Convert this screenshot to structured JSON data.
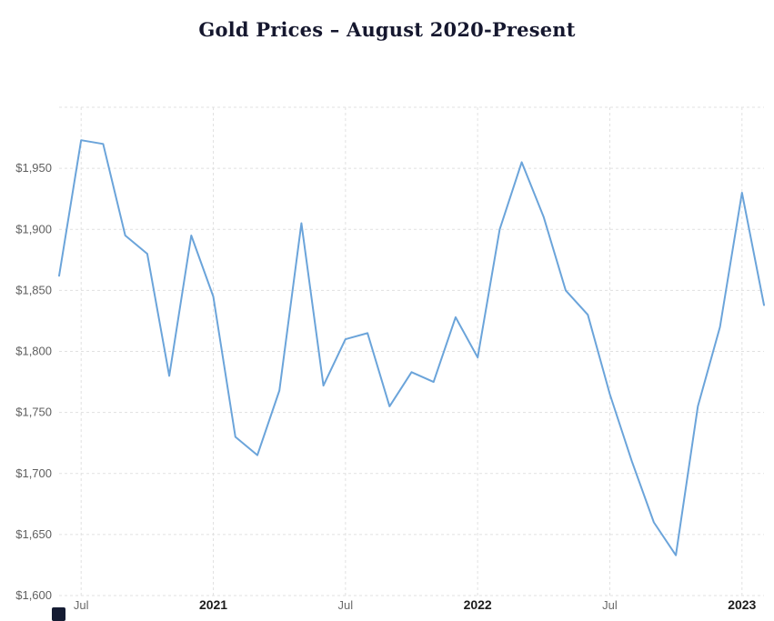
{
  "page": {
    "title": "Gold Prices – August 2020-Present"
  },
  "chart_data": {
    "type": "line",
    "title": "Gold Prices – August 2020-Present",
    "x": [
      "Jun 2020",
      "Jul 2020",
      "Aug 2020",
      "Sep 2020",
      "Oct 2020",
      "Nov 2020",
      "Dec 2020",
      "Jan 2021",
      "Feb 2021",
      "Mar 2021",
      "Apr 2021",
      "May 2021",
      "Jun 2021",
      "Jul 2021",
      "Aug 2021",
      "Sep 2021",
      "Oct 2021",
      "Nov 2021",
      "Dec 2021",
      "Jan 2022",
      "Feb 2022",
      "Mar 2022",
      "Apr 2022",
      "May 2022",
      "Jun 2022",
      "Jul 2022",
      "Aug 2022",
      "Sep 2022",
      "Oct 2022",
      "Nov 2022",
      "Dec 2022",
      "Jan 2023",
      "Feb 2023"
    ],
    "values": [
      1862,
      1973,
      1970,
      1895,
      1880,
      1780,
      1895,
      1845,
      1730,
      1715,
      1768,
      1905,
      1772,
      1810,
      1815,
      1755,
      1783,
      1775,
      1828,
      1795,
      1900,
      1955,
      1910,
      1850,
      1830,
      1765,
      1710,
      1660,
      1633,
      1755,
      1820,
      1930,
      1838
    ],
    "ylim": [
      1600,
      2000
    ],
    "y_ticks": [
      {
        "value": 1600,
        "label": "$1,600"
      },
      {
        "value": 1650,
        "label": "$1,650"
      },
      {
        "value": 1700,
        "label": "$1,700"
      },
      {
        "value": 1750,
        "label": "$1,750"
      },
      {
        "value": 1800,
        "label": "$1,800"
      },
      {
        "value": 1850,
        "label": "$1,850"
      },
      {
        "value": 1900,
        "label": "$1,900"
      },
      {
        "value": 1950,
        "label": "$1,950"
      }
    ],
    "x_ticks": [
      {
        "index": 1,
        "label": "Jul",
        "bold": false
      },
      {
        "index": 7,
        "label": "2021",
        "bold": true
      },
      {
        "index": 13,
        "label": "Jul",
        "bold": false
      },
      {
        "index": 19,
        "label": "2022",
        "bold": true
      },
      {
        "index": 25,
        "label": "Jul",
        "bold": false
      },
      {
        "index": 31,
        "label": "2023",
        "bold": true
      }
    ],
    "xlabel": "",
    "ylabel": "",
    "legend": "none",
    "grid": "dashed",
    "line_color": "#6ba4da",
    "grid_color": "#e1e1e1",
    "title_color": "#15172e",
    "axis_label_color": "#5f5f5f",
    "year_label_color": "#1c1c1c",
    "background": "#ffffff",
    "logo_color": "#151c33"
  }
}
